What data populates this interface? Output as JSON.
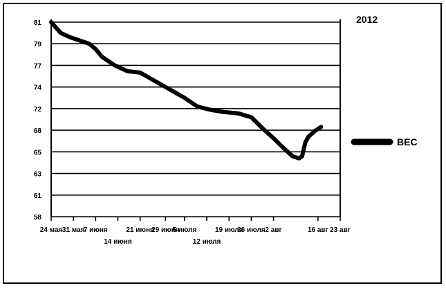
{
  "chart_data": {
    "type": "line",
    "annotation": "2012",
    "y_ticks": [
      58,
      61,
      63,
      65,
      68,
      72,
      74,
      77,
      79,
      81
    ],
    "x_ticks": [
      {
        "label": "24 мая",
        "day": 0
      },
      {
        "label": "31 мая",
        "day": 7
      },
      {
        "label": "7 июня",
        "day": 14
      },
      {
        "label": "14 июня",
        "day": 21
      },
      {
        "label": "21 июня",
        "day": 28
      },
      {
        "label": "29 июня",
        "day": 36
      },
      {
        "label": "5 июля",
        "day": 42
      },
      {
        "label": "12 июля",
        "day": 49
      },
      {
        "label": "19 июля",
        "day": 56
      },
      {
        "label": "26 июля",
        "day": 63
      },
      {
        "label": "2 авг",
        "day": 70
      },
      {
        "label": "16 авг",
        "day": 84
      },
      {
        "label": "23 авг",
        "day": 91
      }
    ],
    "grid": true,
    "legend_position": "right",
    "series": [
      {
        "name": "ВЕС",
        "color": "#000000",
        "points": [
          {
            "day": 0,
            "value": 81
          },
          {
            "day": 3,
            "value": 80
          },
          {
            "day": 6,
            "value": 79.6
          },
          {
            "day": 10,
            "value": 79.2
          },
          {
            "day": 12,
            "value": 79
          },
          {
            "day": 14,
            "value": 78.5
          },
          {
            "day": 16,
            "value": 77.8
          },
          {
            "day": 18,
            "value": 77.4
          },
          {
            "day": 20,
            "value": 77
          },
          {
            "day": 22,
            "value": 76.6
          },
          {
            "day": 24,
            "value": 76.2
          },
          {
            "day": 28,
            "value": 76
          },
          {
            "day": 32,
            "value": 75
          },
          {
            "day": 36,
            "value": 74
          },
          {
            "day": 39,
            "value": 73.5
          },
          {
            "day": 42,
            "value": 73
          },
          {
            "day": 46,
            "value": 72.2
          },
          {
            "day": 50,
            "value": 71.8
          },
          {
            "day": 54,
            "value": 71.4
          },
          {
            "day": 59,
            "value": 71.1
          },
          {
            "day": 63,
            "value": 70.4
          },
          {
            "day": 67,
            "value": 68.1
          },
          {
            "day": 70,
            "value": 66.9
          },
          {
            "day": 73,
            "value": 65.6
          },
          {
            "day": 76,
            "value": 64.6
          },
          {
            "day": 78,
            "value": 64.4
          },
          {
            "day": 79,
            "value": 64.6
          },
          {
            "day": 80,
            "value": 66.3
          },
          {
            "day": 81,
            "value": 67.1
          },
          {
            "day": 83,
            "value": 67.9
          },
          {
            "day": 85,
            "value": 68.6
          }
        ]
      }
    ]
  }
}
